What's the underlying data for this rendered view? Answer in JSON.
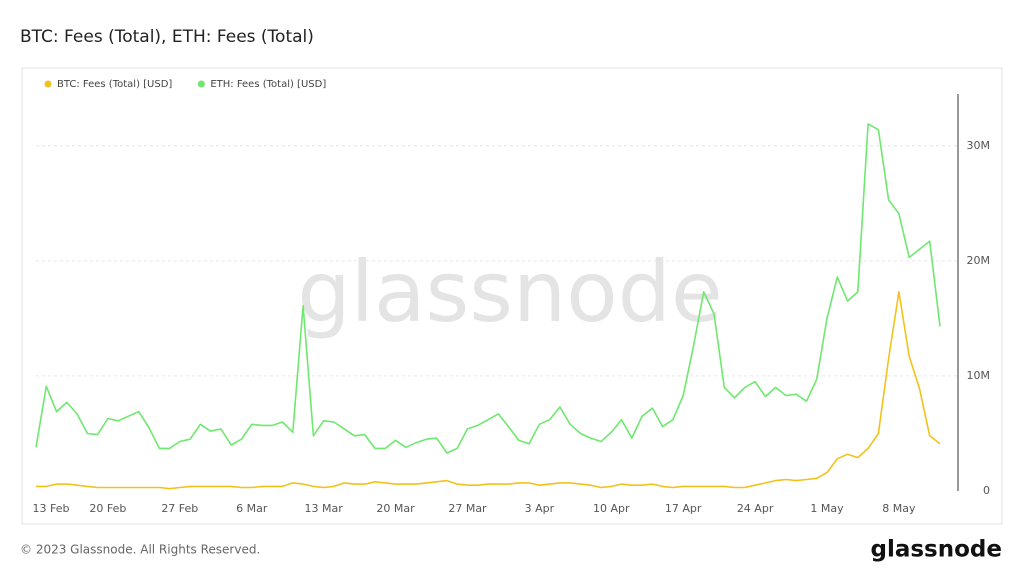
{
  "chart_data": {
    "type": "line",
    "title": "BTC: Fees (Total), ETH: Fees (Total)",
    "watermark": "glassnode",
    "categories": [
      "13 Feb",
      null,
      null,
      null,
      null,
      null,
      null,
      "20 Feb",
      null,
      null,
      null,
      null,
      null,
      null,
      "27 Feb",
      null,
      null,
      null,
      null,
      null,
      null,
      "6 Mar",
      null,
      null,
      null,
      null,
      null,
      null,
      "13 Mar",
      null,
      null,
      null,
      null,
      null,
      null,
      "20 Mar",
      null,
      null,
      null,
      null,
      null,
      null,
      "27 Mar",
      null,
      null,
      null,
      null,
      null,
      null,
      "3 Apr",
      null,
      null,
      null,
      null,
      null,
      null,
      "10 Apr",
      null,
      null,
      null,
      null,
      null,
      null,
      "17 Apr",
      null,
      null,
      null,
      null,
      null,
      null,
      "24 Apr",
      null,
      null,
      null,
      null,
      null,
      null,
      "1 May",
      null,
      null,
      null,
      null,
      null,
      null,
      "8 May",
      null,
      null,
      null,
      null
    ],
    "series": [
      {
        "name": "BTC: Fees (Total) [USD]",
        "color": "#f2c21b",
        "values": [
          400000,
          400000,
          600000,
          600000,
          500000,
          400000,
          300000,
          300000,
          300000,
          300000,
          300000,
          300000,
          300000,
          200000,
          300000,
          400000,
          400000,
          400000,
          400000,
          400000,
          300000,
          300000,
          400000,
          400000,
          400000,
          700000,
          600000,
          400000,
          300000,
          400000,
          700000,
          600000,
          600000,
          800000,
          700000,
          600000,
          600000,
          600000,
          700000,
          800000,
          900000,
          600000,
          500000,
          500000,
          600000,
          600000,
          600000,
          700000,
          700000,
          500000,
          600000,
          700000,
          700000,
          600000,
          500000,
          300000,
          400000,
          600000,
          500000,
          500000,
          600000,
          400000,
          300000,
          400000,
          400000,
          400000,
          400000,
          400000,
          300000,
          300000,
          500000,
          700000,
          900000,
          1000000,
          900000,
          1000000,
          1100000,
          1600000,
          2800000,
          3200000,
          2900000,
          3700000,
          5000000,
          11500000,
          17300000,
          11700000,
          8900000,
          4800000,
          4100000
        ]
      },
      {
        "name": "ETH: Fees (Total) [USD]",
        "color": "#6ee86e",
        "values": [
          3800000,
          9100000,
          6900000,
          7700000,
          6700000,
          5000000,
          4900000,
          6300000,
          6100000,
          6500000,
          6900000,
          5500000,
          3700000,
          3700000,
          4300000,
          4500000,
          5800000,
          5200000,
          5400000,
          4000000,
          4500000,
          5800000,
          5700000,
          5700000,
          6000000,
          5100000,
          16100000,
          4800000,
          6100000,
          6000000,
          5400000,
          4800000,
          4900000,
          3700000,
          3700000,
          4400000,
          3800000,
          4200000,
          4500000,
          4600000,
          3300000,
          3700000,
          5400000,
          5700000,
          6200000,
          6700000,
          5600000,
          4400000,
          4100000,
          5800000,
          6200000,
          7300000,
          5800000,
          5000000,
          4600000,
          4300000,
          5100000,
          6200000,
          4600000,
          6500000,
          7200000,
          5600000,
          6200000,
          8300000,
          12600000,
          17300000,
          15400000,
          9000000,
          8100000,
          9000000,
          9500000,
          8200000,
          9000000,
          8300000,
          8400000,
          7800000,
          9700000,
          15000000,
          18600000,
          16500000,
          17300000,
          31900000,
          31400000,
          25300000,
          24100000,
          20300000,
          21000000,
          21700000,
          14300000
        ]
      }
    ],
    "ylim": [
      0,
      34500000
    ],
    "yticks": [
      0,
      {
        "value": 10000000,
        "label": "10M"
      },
      {
        "value": 20000000,
        "label": "20M"
      },
      {
        "value": 30000000,
        "label": "30M"
      }
    ],
    "grid": true,
    "legend": "top-left"
  },
  "footer": {
    "copyright": "© 2023 Glassnode. All Rights Reserved.",
    "logo": "glassnode"
  }
}
